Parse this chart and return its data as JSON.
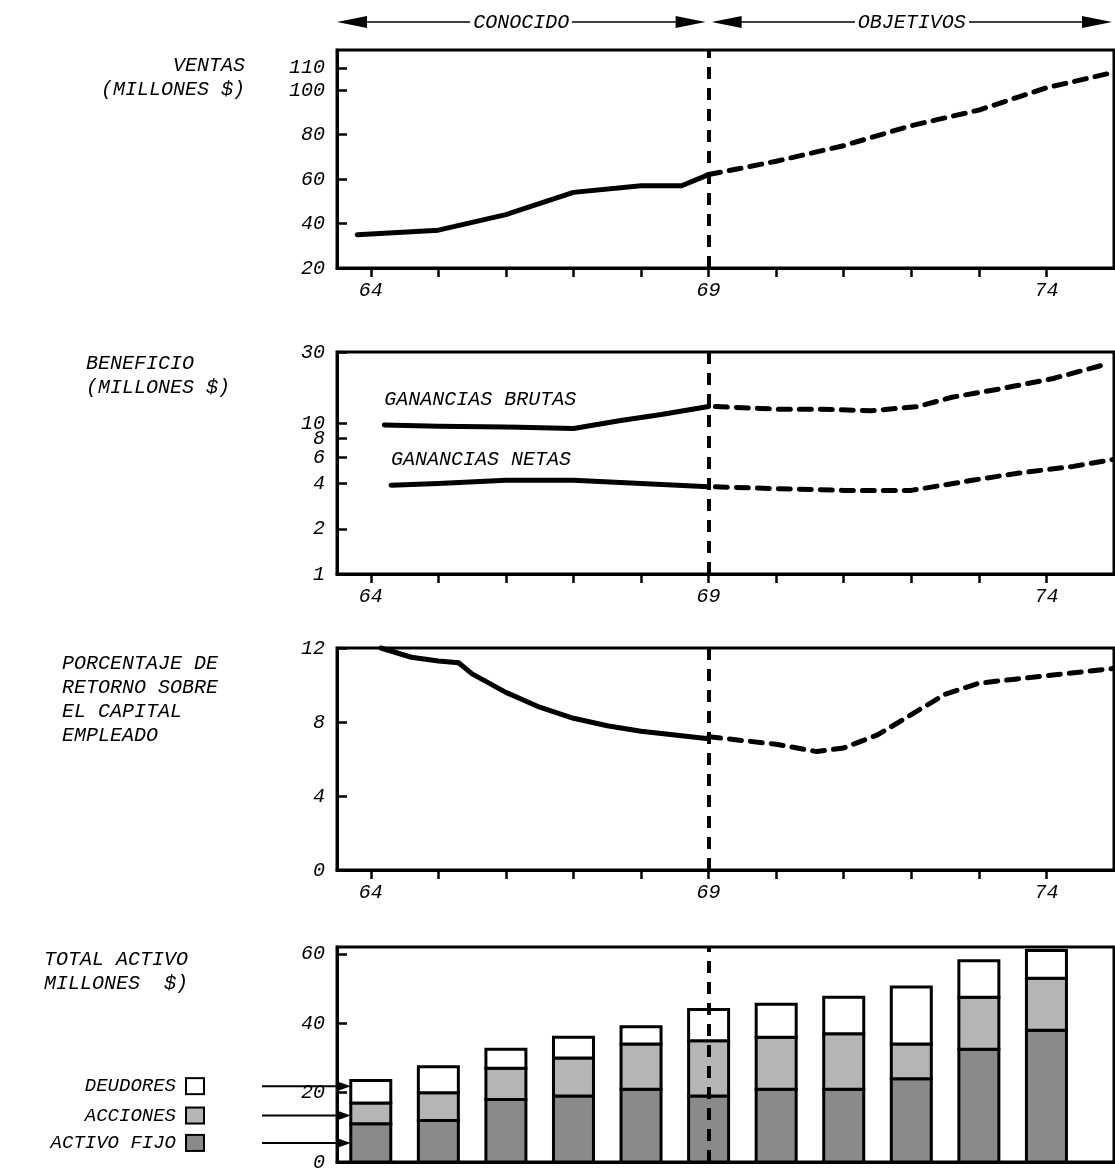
{
  "chart_data": [
    {
      "type": "line",
      "ylabel": "VENTAS\n(MILLONES $)",
      "xlim": [
        63.5,
        75
      ],
      "xticks": [
        64,
        {
          "value": 65,
          "label": null
        },
        {
          "value": 66,
          "label": null
        },
        {
          "value": 67,
          "label": null
        },
        {
          "value": 68,
          "label": null
        },
        69,
        {
          "value": 70,
          "label": null
        },
        {
          "value": 71,
          "label": null
        },
        {
          "value": 72,
          "label": null
        },
        {
          "value": 73,
          "label": null
        },
        74
      ],
      "ylim": [
        20,
        118
      ],
      "yticks": [
        20,
        40,
        60,
        80,
        100,
        110
      ],
      "annotations": [
        "CONOCIDO",
        "OBJETIVOS"
      ],
      "ref_lines": [
        {
          "axis": "x",
          "value": 69,
          "line_style": "dashed",
          "color": "#000000"
        }
      ],
      "series": [
        {
          "color": "#000000",
          "line_style": "solid",
          "x": [
            63.8,
            65,
            66,
            67,
            68,
            68.6,
            69
          ],
          "values": [
            35,
            37,
            44,
            54,
            57,
            57,
            62
          ]
        },
        {
          "color": "#000000",
          "line_style": "dashed",
          "x": [
            69,
            70,
            71,
            72,
            73,
            74,
            75
          ],
          "values": [
            62,
            68,
            75,
            84,
            91,
            101,
            108
          ]
        }
      ]
    },
    {
      "type": "line",
      "ylabel": "BENEFICIO\n(MILLONES $)",
      "log": true,
      "xlim": [
        63.5,
        75
      ],
      "xticks": [
        64,
        {
          "value": 65,
          "label": null
        },
        {
          "value": 66,
          "label": null
        },
        {
          "value": 67,
          "label": null
        },
        {
          "value": 68,
          "label": null
        },
        69,
        {
          "value": 70,
          "label": null
        },
        {
          "value": 71,
          "label": null
        },
        {
          "value": 72,
          "label": null
        },
        {
          "value": 73,
          "label": null
        },
        74
      ],
      "ylim": [
        1,
        30
      ],
      "yticks": [
        1,
        2,
        4,
        6,
        8,
        10,
        30
      ],
      "ref_lines": [
        {
          "axis": "x",
          "value": 69,
          "line_style": "dashed",
          "color": "#000000"
        }
      ],
      "series": [
        {
          "name": "GANANCIAS BRUTAS",
          "color": "#000000",
          "line_style": "solid",
          "x": [
            64.2,
            65,
            66,
            67,
            67.7,
            68.3,
            69
          ],
          "values": [
            9.8,
            9.6,
            9.5,
            9.3,
            10.5,
            11.5,
            13
          ]
        },
        {
          "color": "#000000",
          "line_style": "dashed",
          "x": [
            69.1,
            70,
            70.6,
            71.4,
            72.1,
            72.6,
            73.3,
            74.1,
            74.9
          ],
          "values": [
            13,
            12.5,
            12.5,
            12.2,
            13,
            15,
            17,
            20,
            25
          ]
        },
        {
          "name": "GANANCIAS NETAS",
          "color": "#000000",
          "line_style": "solid",
          "x": [
            64.3,
            65,
            66,
            67,
            68,
            69
          ],
          "values": [
            3.9,
            4,
            4.2,
            4.2,
            4,
            3.8
          ]
        },
        {
          "color": "#000000",
          "line_style": "dashed",
          "x": [
            69.1,
            70,
            71,
            72,
            72.9,
            73.6,
            74.4,
            75
          ],
          "values": [
            3.8,
            3.7,
            3.6,
            3.6,
            4.2,
            4.7,
            5.2,
            5.8
          ]
        }
      ]
    },
    {
      "type": "line",
      "ylabel": "PORCENTAJE DE\nRETORNO SOBRE\nEL CAPITAL\nEMPLEADO",
      "xlim": [
        63.5,
        75
      ],
      "xticks": [
        64,
        {
          "value": 65,
          "label": null
        },
        {
          "value": 66,
          "label": null
        },
        {
          "value": 67,
          "label": null
        },
        {
          "value": 68,
          "label": null
        },
        69,
        {
          "value": 70,
          "label": null
        },
        {
          "value": 71,
          "label": null
        },
        {
          "value": 72,
          "label": null
        },
        {
          "value": 73,
          "label": null
        },
        74
      ],
      "ylim": [
        0,
        12
      ],
      "yticks": [
        0,
        4,
        8,
        12
      ],
      "ref_lines": [
        {
          "axis": "x",
          "value": 69,
          "line_style": "dashed",
          "color": "#000000"
        }
      ],
      "series": [
        {
          "color": "#000000",
          "line_style": "solid",
          "x": [
            64.15,
            64.6,
            65,
            65.3,
            65.5,
            66,
            66.5,
            67,
            67.5,
            68,
            68.5,
            69
          ],
          "values": [
            12,
            11.5,
            11.3,
            11.2,
            10.6,
            9.6,
            8.8,
            8.2,
            7.8,
            7.5,
            7.3,
            7.1
          ]
        },
        {
          "color": "#000000",
          "line_style": "dashed",
          "x": [
            69,
            69.5,
            70,
            70.6,
            71,
            71.5,
            72,
            72.5,
            73,
            73.5,
            74,
            75
          ],
          "values": [
            7.2,
            7,
            6.8,
            6.4,
            6.6,
            7.3,
            8.4,
            9.5,
            10.1,
            10.3,
            10.5,
            10.9
          ]
        }
      ]
    },
    {
      "type": "bar",
      "stacked": true,
      "legend": "bottom left",
      "ylabel": "TOTAL ACTIVO\nMILLONES  $)",
      "tick_labels": "y",
      "xlim": [
        63.5,
        75
      ],
      "ylim": [
        0,
        62
      ],
      "yticks": [
        0,
        20,
        40,
        60
      ],
      "x": [
        64,
        65,
        66,
        67,
        68,
        69,
        70,
        71,
        72,
        73,
        74
      ],
      "ref_lines": [
        {
          "axis": "x",
          "value": 69,
          "line_style": "dashed",
          "color": "#000000"
        }
      ],
      "series": [
        {
          "name": "ACTIVO FIJO",
          "color": "#8a8a8a",
          "values": [
            11,
            12,
            18,
            19,
            21,
            19,
            21,
            21,
            24,
            32.5,
            38
          ]
        },
        {
          "name": "ACCIONES",
          "color": "#b5b5b5",
          "values": [
            6,
            8,
            9,
            11,
            13,
            16,
            15,
            16,
            10,
            15,
            15
          ]
        },
        {
          "name": "DEUDORES",
          "color": "#ffffff",
          "values": [
            6.5,
            7.5,
            5.5,
            6,
            5,
            9,
            9.5,
            10.5,
            16.5,
            10.5,
            8
          ]
        }
      ]
    }
  ]
}
